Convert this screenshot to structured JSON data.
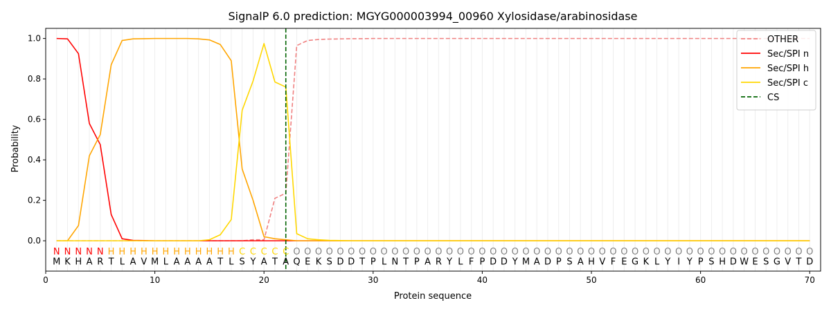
{
  "chart_data": {
    "type": "line",
    "title": "SignalP 6.0 prediction: MGYG000003994_00960 Xylosidase/arabinosidase",
    "xlabel": "Protein sequence",
    "ylabel": "Probability",
    "xlim": [
      0,
      71
    ],
    "ylim": [
      -0.15,
      1.05
    ],
    "x_ticks": [
      0,
      10,
      20,
      30,
      40,
      50,
      60,
      70
    ],
    "y_ticks": [
      0.0,
      0.2,
      0.4,
      0.6,
      0.8,
      1.0
    ],
    "x_tick_labels": [
      "0",
      "10",
      "20",
      "30",
      "40",
      "50",
      "60",
      "70"
    ],
    "y_tick_labels": [
      "0.0",
      "0.2",
      "0.4",
      "0.6",
      "0.8",
      "1.0"
    ],
    "vertical_gridlines_every_position": true,
    "legend_position": "top-right",
    "sequence": [
      "M",
      "K",
      "H",
      "A",
      "R",
      "T",
      "L",
      "A",
      "V",
      "M",
      "L",
      "A",
      "A",
      "A",
      "A",
      "T",
      "L",
      "S",
      "Y",
      "A",
      "T",
      "A",
      "Q",
      "E",
      "K",
      "S",
      "D",
      "D",
      "T",
      "P",
      "L",
      "N",
      "T",
      "P",
      "A",
      "R",
      "Y",
      "L",
      "F",
      "P",
      "D",
      "D",
      "Y",
      "M",
      "A",
      "D",
      "P",
      "S",
      "A",
      "H",
      "V",
      "F",
      "E",
      "G",
      "K",
      "L",
      "Y",
      "I",
      "Y",
      "P",
      "S",
      "H",
      "D",
      "W",
      "E",
      "S",
      "G",
      "V",
      "T",
      "D"
    ],
    "region_labels": [
      "N",
      "N",
      "N",
      "N",
      "N",
      "H",
      "H",
      "H",
      "H",
      "H",
      "H",
      "H",
      "H",
      "H",
      "H",
      "H",
      "H",
      "C",
      "C",
      "C",
      "C",
      "C",
      "O",
      "O",
      "O",
      "O",
      "O",
      "O",
      "O",
      "O",
      "O",
      "O",
      "O",
      "O",
      "O",
      "O",
      "O",
      "O",
      "O",
      "O",
      "O",
      "O",
      "O",
      "O",
      "O",
      "O",
      "O",
      "O",
      "O",
      "O",
      "O",
      "O",
      "O",
      "O",
      "O",
      "O",
      "O",
      "O",
      "O",
      "O",
      "O",
      "O",
      "O",
      "O",
      "O",
      "O",
      "O",
      "O",
      "O",
      "O"
    ],
    "region_colors": {
      "N": "#ff0000",
      "H": "#ffa500",
      "C": "#ffd700",
      "O": "#808080"
    },
    "x": [
      1,
      2,
      3,
      4,
      5,
      6,
      7,
      8,
      9,
      10,
      11,
      12,
      13,
      14,
      15,
      16,
      17,
      18,
      19,
      20,
      21,
      22,
      23,
      24,
      25,
      26,
      27,
      28,
      29,
      30,
      31,
      32,
      33,
      34,
      35,
      36,
      37,
      38,
      39,
      40,
      41,
      42,
      43,
      44,
      45,
      46,
      47,
      48,
      49,
      50,
      51,
      52,
      53,
      54,
      55,
      56,
      57,
      58,
      59,
      60,
      61,
      62,
      63,
      64,
      65,
      66,
      67,
      68,
      69,
      70
    ],
    "series": [
      {
        "name": "OTHER",
        "color": "#f08080",
        "dash": "dashed",
        "values": [
          0.0,
          0.0,
          0.0,
          0.0,
          0.0,
          0.0,
          0.0,
          0.0,
          0.0,
          0.0,
          0.0,
          0.0,
          0.0,
          0.0,
          0.0,
          0.0,
          0.0,
          0.0,
          0.005,
          0.005,
          0.21,
          0.235,
          0.965,
          0.99,
          0.995,
          0.997,
          0.998,
          0.999,
          0.999,
          1.0,
          1.0,
          1.0,
          1.0,
          1.0,
          1.0,
          1.0,
          1.0,
          1.0,
          1.0,
          1.0,
          1.0,
          1.0,
          1.0,
          1.0,
          1.0,
          1.0,
          1.0,
          1.0,
          1.0,
          1.0,
          1.0,
          1.0,
          1.0,
          1.0,
          1.0,
          1.0,
          1.0,
          1.0,
          1.0,
          1.0,
          1.0,
          1.0,
          1.0,
          1.0,
          1.0,
          1.0,
          1.0,
          1.0,
          1.0,
          1.0
        ]
      },
      {
        "name": "Sec/SPI n",
        "color": "#ff0000",
        "dash": "solid",
        "values": [
          1.0,
          0.998,
          0.925,
          0.58,
          0.475,
          0.13,
          0.01,
          0.002,
          0.001,
          0.0,
          0.0,
          0.0,
          0.0,
          0.0,
          0.0,
          0.0,
          0.0,
          0.0,
          0.0,
          0.0,
          0.0,
          0.0,
          0.0,
          0.0,
          0.0,
          0.0,
          0.0,
          0.0,
          0.0,
          0.0,
          0.0,
          0.0,
          0.0,
          0.0,
          0.0,
          0.0,
          0.0,
          0.0,
          0.0,
          0.0,
          0.0,
          0.0,
          0.0,
          0.0,
          0.0,
          0.0,
          0.0,
          0.0,
          0.0,
          0.0,
          0.0,
          0.0,
          0.0,
          0.0,
          0.0,
          0.0,
          0.0,
          0.0,
          0.0,
          0.0,
          0.0,
          0.0,
          0.0,
          0.0,
          0.0,
          0.0,
          0.0,
          0.0,
          0.0,
          0.0
        ]
      },
      {
        "name": "Sec/SPI h",
        "color": "#ffa500",
        "dash": "solid",
        "values": [
          0.0,
          0.0,
          0.075,
          0.42,
          0.525,
          0.87,
          0.99,
          0.998,
          0.999,
          1.0,
          1.0,
          1.0,
          1.0,
          0.998,
          0.993,
          0.97,
          0.89,
          0.355,
          0.2,
          0.02,
          0.01,
          0.005,
          0.0,
          0.0,
          0.0,
          0.0,
          0.0,
          0.0,
          0.0,
          0.0,
          0.0,
          0.0,
          0.0,
          0.0,
          0.0,
          0.0,
          0.0,
          0.0,
          0.0,
          0.0,
          0.0,
          0.0,
          0.0,
          0.0,
          0.0,
          0.0,
          0.0,
          0.0,
          0.0,
          0.0,
          0.0,
          0.0,
          0.0,
          0.0,
          0.0,
          0.0,
          0.0,
          0.0,
          0.0,
          0.0,
          0.0,
          0.0,
          0.0,
          0.0,
          0.0,
          0.0,
          0.0,
          0.0,
          0.0,
          0.0
        ]
      },
      {
        "name": "Sec/SPI c",
        "color": "#ffd700",
        "dash": "solid",
        "values": [
          0.0,
          0.0,
          0.0,
          0.0,
          0.0,
          0.0,
          0.0,
          0.0,
          0.0,
          0.0,
          0.0,
          0.0,
          0.0,
          0.0,
          0.005,
          0.03,
          0.105,
          0.645,
          0.79,
          0.975,
          0.785,
          0.76,
          0.035,
          0.01,
          0.005,
          0.002,
          0.001,
          0.0,
          0.0,
          0.0,
          0.0,
          0.0,
          0.0,
          0.0,
          0.0,
          0.0,
          0.0,
          0.0,
          0.0,
          0.0,
          0.0,
          0.0,
          0.0,
          0.0,
          0.0,
          0.0,
          0.0,
          0.0,
          0.0,
          0.0,
          0.0,
          0.0,
          0.0,
          0.0,
          0.0,
          0.0,
          0.0,
          0.0,
          0.0,
          0.0,
          0.0,
          0.0,
          0.0,
          0.0,
          0.0,
          0.0,
          0.0,
          0.0,
          0.0,
          0.0
        ]
      }
    ],
    "cleavage_site": {
      "name": "CS",
      "x": 22,
      "color": "#006400",
      "dash": "dashed"
    }
  }
}
